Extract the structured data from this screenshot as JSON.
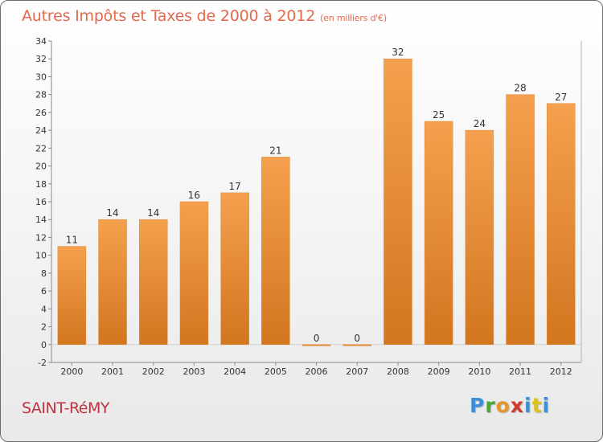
{
  "title": "Autres Impôts et Taxes de 2000 à 2012",
  "subtitle": "(en milliers d'€)",
  "commune": "SAINT-RéMY",
  "logo_letters": [
    "P",
    "r",
    "o",
    "x",
    "i",
    "t",
    "i"
  ],
  "colors": {
    "title": "#e2694d",
    "commune": "#c0333f",
    "bar_top": "#f5a04e",
    "bar_bottom": "#d2761f"
  },
  "chart_data": {
    "type": "bar",
    "title": "Autres Impôts et Taxes de 2000 à 2012",
    "subtitle": "(en milliers d'€)",
    "xlabel": "",
    "ylabel": "",
    "categories": [
      "2000",
      "2001",
      "2002",
      "2003",
      "2004",
      "2005",
      "2006",
      "2007",
      "2008",
      "2009",
      "2010",
      "2011",
      "2012"
    ],
    "values": [
      11,
      14,
      14,
      16,
      17,
      21,
      0,
      0,
      32,
      25,
      24,
      28,
      27
    ],
    "data_labels": [
      "11",
      "14",
      "14",
      "16",
      "17",
      "21",
      "0",
      "0",
      "32",
      "25",
      "24",
      "28",
      "27"
    ],
    "ylim": [
      -2,
      34
    ],
    "yticks": [
      -2,
      0,
      2,
      4,
      6,
      8,
      10,
      12,
      14,
      16,
      18,
      20,
      22,
      24,
      26,
      28,
      30,
      32,
      34
    ],
    "grid": false,
    "legend": "none"
  }
}
